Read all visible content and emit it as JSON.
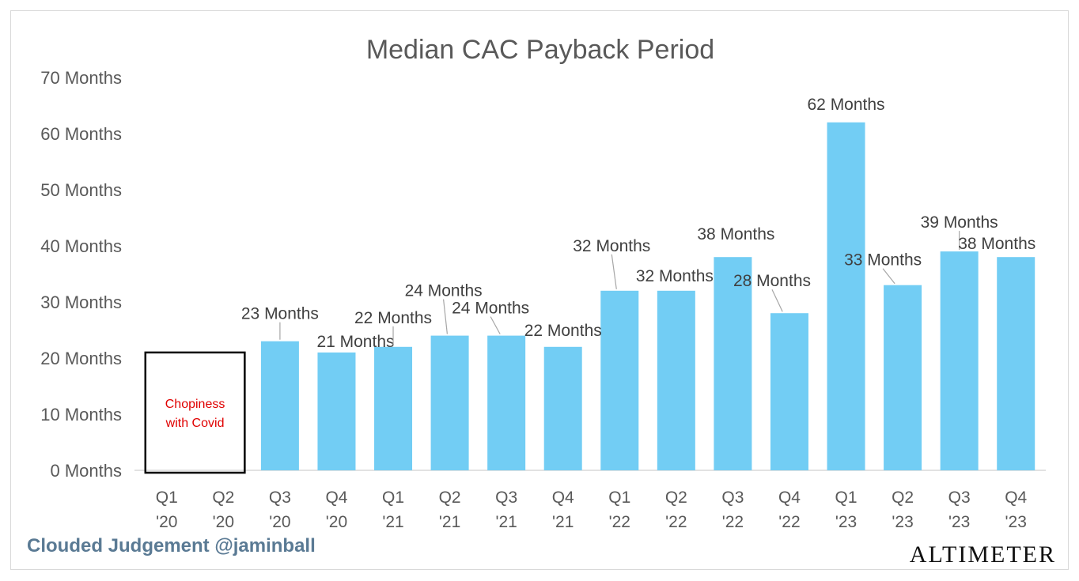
{
  "colors": {
    "bar": "#72cdf4",
    "text": "#595959",
    "label": "#404040",
    "note": "#e00000",
    "credit": "#5a7a94",
    "leader": "#a6a6a6"
  },
  "footer": {
    "credit": "Clouded Judgement @jaminball",
    "brand": "ALTIMETER"
  },
  "chart_data": {
    "type": "bar",
    "title": "Median CAC Payback Period",
    "xlabel": "",
    "ylabel": "",
    "ylim": [
      0,
      70
    ],
    "grid": false,
    "yticks": [
      0,
      10,
      20,
      30,
      40,
      50,
      60,
      70
    ],
    "ytick_suffix": " Months",
    "categories": [
      {
        "q": "Q1",
        "y": "'20"
      },
      {
        "q": "Q2",
        "y": "'20"
      },
      {
        "q": "Q3",
        "y": "'20"
      },
      {
        "q": "Q4",
        "y": "'20"
      },
      {
        "q": "Q1",
        "y": "'21"
      },
      {
        "q": "Q2",
        "y": "'21"
      },
      {
        "q": "Q3",
        "y": "'21"
      },
      {
        "q": "Q4",
        "y": "'21"
      },
      {
        "q": "Q1",
        "y": "'22"
      },
      {
        "q": "Q2",
        "y": "'22"
      },
      {
        "q": "Q3",
        "y": "'22"
      },
      {
        "q": "Q4",
        "y": "'22"
      },
      {
        "q": "Q1",
        "y": "'23"
      },
      {
        "q": "Q2",
        "y": "'23"
      },
      {
        "q": "Q3",
        "y": "'23"
      },
      {
        "q": "Q4",
        "y": "'23"
      }
    ],
    "values": [
      null,
      null,
      23,
      21,
      22,
      24,
      24,
      22,
      32,
      32,
      38,
      28,
      62,
      33,
      39,
      38
    ],
    "data_labels": [
      "",
      "",
      "23 Months",
      "21 Months",
      "22 Months",
      "24 Months",
      "24 Months",
      "22 Months",
      "32 Months",
      "32 Months",
      "38 Months",
      "28 Months",
      "62 Months",
      "33 Months",
      "39 Months",
      "38 Months"
    ],
    "annotation": {
      "text_lines": [
        "Chopiness",
        "with Covid"
      ],
      "span": [
        0,
        1
      ],
      "value": 21
    }
  }
}
